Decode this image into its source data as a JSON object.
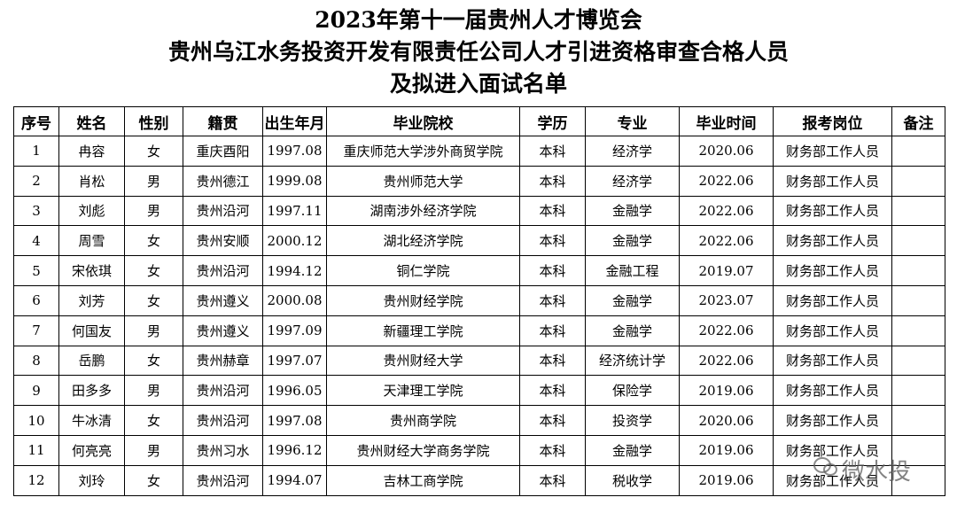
{
  "header": {
    "title_lines": [
      "2023年第十一届贵州人才博览会",
      "贵州乌江水务投资开发有限责任公司人才引进资格审查合格人员",
      "及拟进入面试名单"
    ]
  },
  "table": {
    "columns": [
      "序号",
      "姓名",
      "性别",
      "籍贯",
      "出生年月",
      "毕业院校",
      "学历",
      "专业",
      "毕业时间",
      "报考岗位",
      "备注"
    ],
    "rows": [
      [
        "1",
        "冉容",
        "女",
        "重庆酉阳",
        "1997.08",
        "重庆师范大学涉外商贸学院",
        "本科",
        "经济学",
        "2020.06",
        "财务部工作人员",
        ""
      ],
      [
        "2",
        "肖松",
        "男",
        "贵州德江",
        "1999.08",
        "贵州师范大学",
        "本科",
        "经济学",
        "2022.06",
        "财务部工作人员",
        ""
      ],
      [
        "3",
        "刘彪",
        "男",
        "贵州沿河",
        "1997.11",
        "湖南涉外经济学院",
        "本科",
        "金融学",
        "2022.06",
        "财务部工作人员",
        ""
      ],
      [
        "4",
        "周雪",
        "女",
        "贵州安顺",
        "2000.12",
        "湖北经济学院",
        "本科",
        "金融学",
        "2022.06",
        "财务部工作人员",
        ""
      ],
      [
        "5",
        "宋依琪",
        "女",
        "贵州沿河",
        "1994.12",
        "铜仁学院",
        "本科",
        "金融工程",
        "2019.07",
        "财务部工作人员",
        ""
      ],
      [
        "6",
        "刘芳",
        "女",
        "贵州遵义",
        "2000.08",
        "贵州财经学院",
        "本科",
        "金融学",
        "2023.07",
        "财务部工作人员",
        ""
      ],
      [
        "7",
        "何国友",
        "男",
        "贵州遵义",
        "1997.09",
        "新疆理工学院",
        "本科",
        "金融学",
        "2022.06",
        "财务部工作人员",
        ""
      ],
      [
        "8",
        "岳鹏",
        "女",
        "贵州赫章",
        "1997.07",
        "贵州财经大学",
        "本科",
        "经济统计学",
        "2022.06",
        "财务部工作人员",
        ""
      ],
      [
        "9",
        "田多多",
        "男",
        "贵州沿河",
        "1996.05",
        "天津理工学院",
        "本科",
        "保险学",
        "2019.06",
        "财务部工作人员",
        ""
      ],
      [
        "10",
        "牛冰清",
        "女",
        "贵州沿河",
        "1997.08",
        "贵州商学院",
        "本科",
        "投资学",
        "2020.06",
        "财务部工作人员",
        ""
      ],
      [
        "11",
        "何亮亮",
        "男",
        "贵州习水",
        "1996.12",
        "贵州财经大学商务学院",
        "本科",
        "金融学",
        "2019.06",
        "财务部工作人员",
        ""
      ],
      [
        "12",
        "刘玲",
        "女",
        "贵州沿河",
        "1994.07",
        "吉林工商学院",
        "本科",
        "税收学",
        "2019.06",
        "财务部工作人员",
        ""
      ]
    ]
  },
  "watermark": "微水投"
}
